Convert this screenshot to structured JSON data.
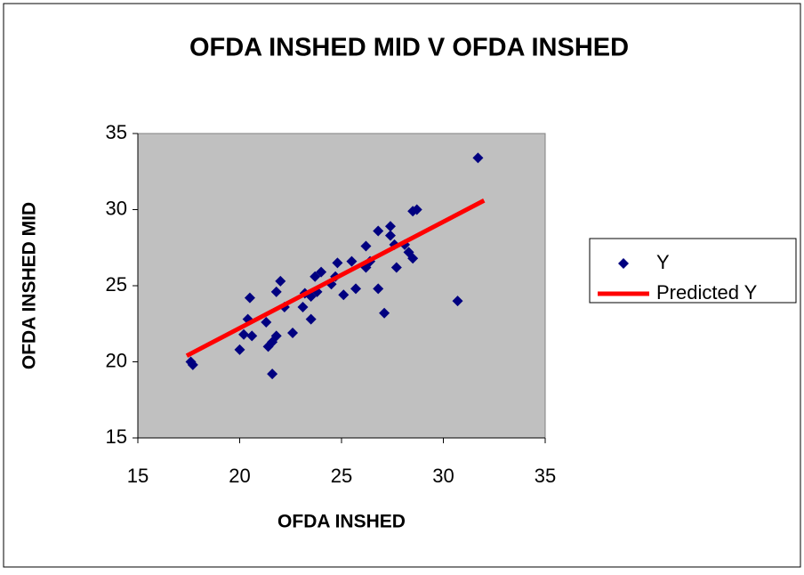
{
  "chart_data": {
    "type": "scatter",
    "title": "OFDA INSHED MID V OFDA INSHED",
    "x_label": "OFDA INSHED",
    "y_label": "OFDA INSHED MID",
    "xlim": [
      15,
      35
    ],
    "xticks": [
      15,
      20,
      25,
      30,
      35
    ],
    "ylim": [
      15,
      35
    ],
    "yticks": [
      15,
      20,
      25,
      30,
      35
    ],
    "legend": "right",
    "series": [
      {
        "name": "Y",
        "color": "#000080",
        "kind": "points",
        "x": [
          31.7,
          30.7,
          28.7,
          28.5,
          28.5,
          28.3,
          28.1,
          27.4,
          27.4,
          27.6,
          27.7,
          27.1,
          26.8,
          26.8,
          26.2,
          26.2,
          26.4,
          25.7,
          25.5,
          25.1,
          24.8,
          24.7,
          24.5,
          24.0,
          23.7,
          23.5,
          23.5,
          23.8,
          23.2,
          23.1,
          22.6,
          22.2,
          22.0,
          21.8,
          21.6,
          21.8,
          21.6,
          21.4,
          21.3,
          20.5,
          20.4,
          20.2,
          20.0,
          20.6,
          17.6,
          17.7
        ],
        "values": [
          33.4,
          24.0,
          30.0,
          29.9,
          26.8,
          27.2,
          27.7,
          28.9,
          28.3,
          27.7,
          26.2,
          23.2,
          28.6,
          24.8,
          27.6,
          26.2,
          26.6,
          24.8,
          26.6,
          24.4,
          26.5,
          25.6,
          25.1,
          25.9,
          25.6,
          24.3,
          22.8,
          24.6,
          24.5,
          23.6,
          21.9,
          23.6,
          25.3,
          24.6,
          19.2,
          21.7,
          21.3,
          21.0,
          22.6,
          24.2,
          22.8,
          21.8,
          20.8,
          21.7,
          20.0,
          19.8
        ]
      },
      {
        "name": "Predicted Y",
        "color": "#ff0000",
        "kind": "line",
        "x": [
          17.4,
          32.0
        ],
        "values": [
          20.4,
          30.6
        ]
      }
    ]
  }
}
